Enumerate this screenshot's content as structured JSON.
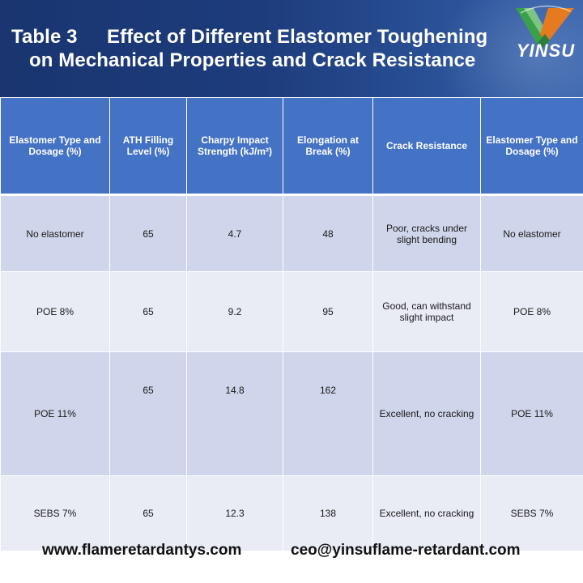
{
  "header": {
    "table_number": "Table 3",
    "title_line1": "Effect of Different Elastomer Toughening",
    "title_line2": "on Mechanical Properties and Crack Resistance",
    "logo_text": "YINSU",
    "logo_icon": "yinsu-v-logo"
  },
  "table": {
    "columns": [
      "Elastomer Type and Dosage (%)",
      "ATH Filling Level (%)",
      "Charpy Impact Strength (kJ/m²)",
      "Elongation at Break (%)",
      "Crack Resistance",
      "Elastomer Type and Dosage (%)"
    ],
    "rows": [
      [
        "No elastomer",
        "65",
        "4.7",
        "48",
        "Poor, cracks under slight bending",
        "No elastomer"
      ],
      [
        "POE 8%",
        "65",
        "9.2",
        "95",
        "Good, can withstand slight impact",
        "POE 8%"
      ],
      [
        "POE 11%",
        "65",
        "14.8",
        "162",
        "Excellent, no cracking",
        "POE 11%"
      ],
      [
        "SEBS 7%",
        "65",
        "12.3",
        "138",
        "Excellent, no cracking",
        "SEBS 7%"
      ]
    ]
  },
  "footer": {
    "website": "www.flameretardantys.com",
    "email": "ceo@yinsuflame-retardant.com"
  },
  "colors": {
    "banner": "#1d3c7c",
    "header_cell": "#4472c4",
    "row_dark": "#cfd5ea",
    "row_light": "#e9ebf5",
    "logo_green": "#3aa14a",
    "logo_orange": "#e67a1e"
  }
}
